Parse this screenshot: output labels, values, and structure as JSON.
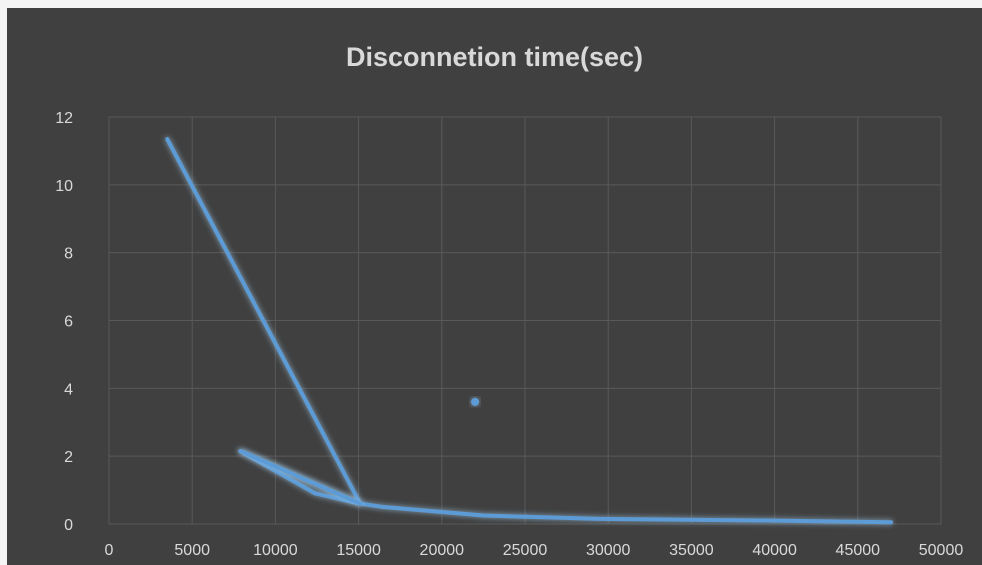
{
  "chart_data": {
    "type": "scatter",
    "title": "Disconnetion time(sec)",
    "xlabel": "",
    "ylabel": "",
    "xlim": [
      0,
      50000
    ],
    "ylim": [
      0,
      12
    ],
    "grid": true,
    "legend": "none",
    "x_ticks": [
      "0",
      "5000",
      "10000",
      "15000",
      "20000",
      "25000",
      "30000",
      "35000",
      "40000",
      "45000",
      "50000"
    ],
    "y_ticks": [
      "0",
      "2",
      "4",
      "6",
      "8",
      "10",
      "12"
    ],
    "series": [
      {
        "points": [
          [
            3500,
            11.35
          ],
          [
            15100,
            0.6
          ],
          [
            7900,
            2.15
          ],
          [
            12400,
            0.9
          ],
          [
            15100,
            0.6
          ],
          [
            16500,
            0.5
          ],
          [
            22500,
            0.25
          ],
          [
            29500,
            0.15
          ],
          [
            40000,
            0.1
          ],
          [
            47000,
            0.05
          ]
        ],
        "mode": "line",
        "color": "#5b9bd5"
      },
      {
        "points": [
          [
            7900,
            2.15
          ],
          [
            15100,
            0.6
          ]
        ],
        "mode": "line",
        "color": "#5b9bd5"
      },
      {
        "points": [
          [
            22000,
            3.6
          ]
        ],
        "mode": "marker",
        "color": "#5b9bd5"
      }
    ],
    "colors": {
      "plot_background": "#404040",
      "grid": "#595959",
      "axis_text": "#d9d9d9",
      "series": "#5b9bd5"
    }
  }
}
